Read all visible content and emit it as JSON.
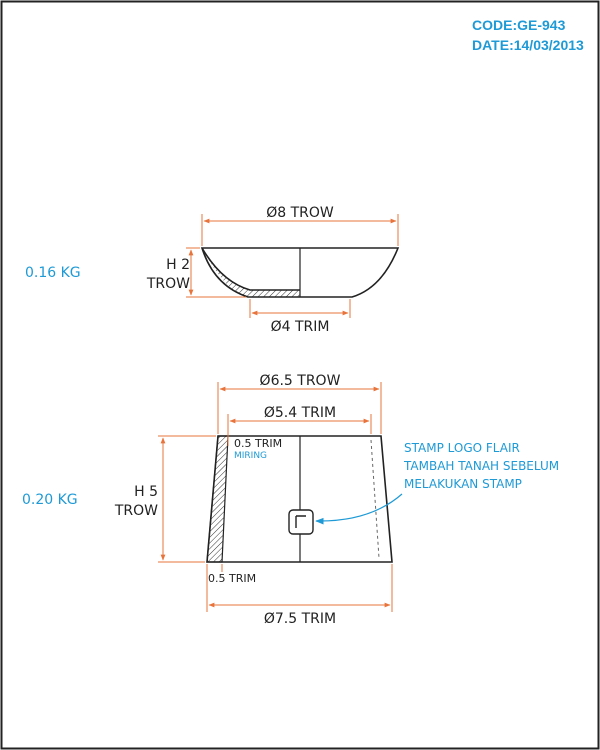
{
  "header": {
    "code": "CODE:GE-943",
    "date": "DATE:14/03/2013"
  },
  "bowl": {
    "weight": "0.16 KG",
    "top_diameter": "Ø8 TROW",
    "height_line1": "H 2",
    "height_line2": "TROW",
    "base_diameter": "Ø4 TRIM"
  },
  "cup": {
    "weight": "0.20 KG",
    "top_outer_diameter": "Ø6.5 TROW",
    "top_inner_diameter": "Ø5.4 TRIM",
    "wall_top": "0.5 TRIM",
    "wall_top_note": "MIRING",
    "height_line1": "H 5",
    "height_line2": "TROW",
    "wall_bottom": "0.5 TRIM",
    "bottom_diameter": "Ø7.5 TRIM"
  },
  "note": {
    "line1": "STAMP LOGO FLAIR",
    "line2": "TAMBAH TANAH SEBELUM",
    "line3": "MELAKUKAN STAMP"
  },
  "colors": {
    "dimension": "#e8743b",
    "accent": "#1e9ad6",
    "outline": "#222222"
  }
}
